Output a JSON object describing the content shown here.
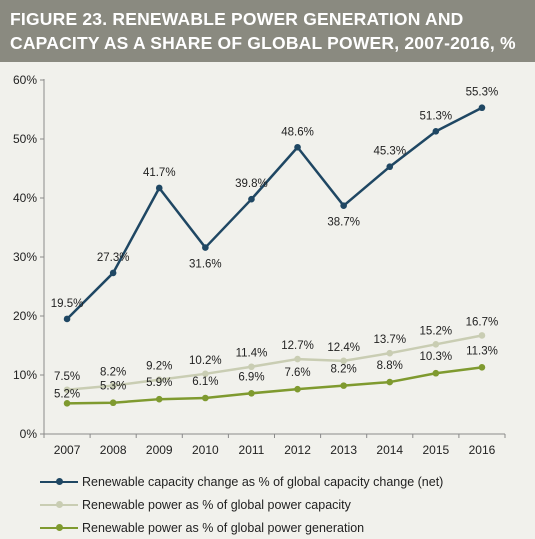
{
  "figure": {
    "title": "FIGURE 23. RENEWABLE POWER GENERATION AND CAPACITY AS A SHARE OF GLOBAL POWER, 2007-2016, %"
  },
  "chart_data": {
    "type": "line",
    "title": "FIGURE 23. RENEWABLE POWER GENERATION AND CAPACITY AS A SHARE OF GLOBAL POWER, 2007-2016, %",
    "xlabel": "",
    "ylabel": "",
    "categories": [
      "2007",
      "2008",
      "2009",
      "2010",
      "2011",
      "2012",
      "2013",
      "2014",
      "2015",
      "2016"
    ],
    "ylim": [
      0,
      60
    ],
    "yticks": [
      0,
      10,
      20,
      30,
      40,
      50,
      60
    ],
    "ytick_labels": [
      "0%",
      "10%",
      "20%",
      "30%",
      "40%",
      "50%",
      "60%"
    ],
    "grid": false,
    "legend_position": "bottom",
    "series": [
      {
        "name": "Renewable capacity change as % of global capacity change (net)",
        "values": [
          19.5,
          27.3,
          41.7,
          31.6,
          39.8,
          48.6,
          38.7,
          45.3,
          51.3,
          55.3
        ],
        "labels": [
          "19.5%",
          "27.3%",
          "41.7%",
          "31.6%",
          "39.8%",
          "48.6%",
          "38.7%",
          "45.3%",
          "51.3%",
          "55.3%"
        ],
        "color": "#1f4763"
      },
      {
        "name": "Renewable power as % of global power capacity",
        "values": [
          7.5,
          8.2,
          9.2,
          10.2,
          11.4,
          12.7,
          12.4,
          13.7,
          15.2,
          16.7
        ],
        "labels": [
          "7.5%",
          "8.2%",
          "9.2%",
          "10.2%",
          "11.4%",
          "12.7%",
          "12.4%",
          "13.7%",
          "15.2%",
          "16.7%"
        ],
        "color": "#c9cdb3"
      },
      {
        "name": "Renewable power as % of global power generation",
        "values": [
          5.2,
          5.3,
          5.9,
          6.1,
          6.9,
          7.6,
          8.2,
          8.8,
          10.3,
          11.3
        ],
        "labels": [
          "5.2%",
          "5.3%",
          "5.9%",
          "6.1%",
          "6.9%",
          "7.6%",
          "8.2%",
          "8.8%",
          "10.3%",
          "11.3%"
        ],
        "color": "#7f9a2f"
      }
    ]
  }
}
